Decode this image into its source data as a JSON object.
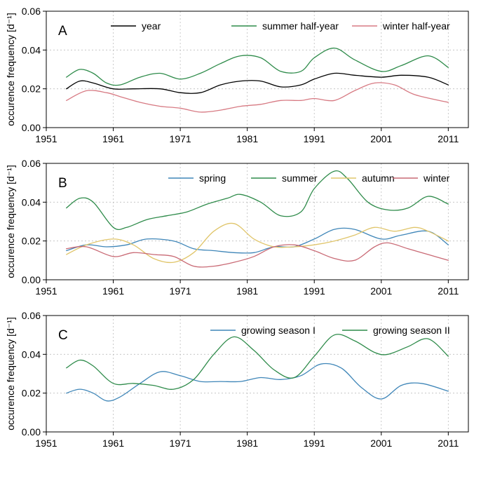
{
  "chart_data": [
    {
      "type": "line",
      "panel_label": "A",
      "ylabel": "occurence frequency [d⁻¹]",
      "xlim": [
        1951,
        2014
      ],
      "ylim": [
        0,
        0.06
      ],
      "xticks": [
        1951,
        1961,
        1971,
        1981,
        1991,
        2001,
        2011
      ],
      "yticks": [
        "0.00",
        "0.02",
        "0.04",
        "0.06"
      ],
      "grid": true,
      "legend_position": "top",
      "series": [
        {
          "name": "year",
          "color": "#000000",
          "x": [
            1954,
            1956,
            1958,
            1961,
            1964,
            1968,
            1971,
            1974,
            1977,
            1980,
            1983,
            1986,
            1989,
            1991,
            1994,
            1997,
            2001,
            2004,
            2008,
            2011
          ],
          "y": [
            0.02,
            0.024,
            0.023,
            0.02,
            0.02,
            0.02,
            0.018,
            0.018,
            0.022,
            0.024,
            0.024,
            0.021,
            0.022,
            0.025,
            0.028,
            0.027,
            0.026,
            0.027,
            0.026,
            0.022
          ]
        },
        {
          "name": "summer half-year",
          "color": "#2e8b4a",
          "x": [
            1954,
            1956,
            1958,
            1960,
            1962,
            1965,
            1968,
            1971,
            1974,
            1977,
            1980,
            1983,
            1986,
            1989,
            1991,
            1994,
            1997,
            2001,
            2004,
            2008,
            2011
          ],
          "y": [
            0.026,
            0.03,
            0.028,
            0.023,
            0.022,
            0.026,
            0.028,
            0.025,
            0.028,
            0.033,
            0.037,
            0.036,
            0.029,
            0.029,
            0.036,
            0.041,
            0.035,
            0.029,
            0.032,
            0.037,
            0.031
          ]
        },
        {
          "name": "winter half-year",
          "color": "#d77a83",
          "x": [
            1954,
            1957,
            1960,
            1962,
            1965,
            1968,
            1971,
            1974,
            1977,
            1980,
            1983,
            1986,
            1989,
            1991,
            1994,
            1997,
            2000,
            2003,
            2006,
            2011
          ],
          "y": [
            0.014,
            0.019,
            0.018,
            0.016,
            0.013,
            0.011,
            0.01,
            0.008,
            0.009,
            0.011,
            0.012,
            0.014,
            0.014,
            0.015,
            0.014,
            0.019,
            0.023,
            0.022,
            0.017,
            0.013
          ]
        }
      ]
    },
    {
      "type": "line",
      "panel_label": "B",
      "ylabel": "occurence frequency [d⁻¹]",
      "xlim": [
        1951,
        2014
      ],
      "ylim": [
        0,
        0.06
      ],
      "xticks": [
        1951,
        1961,
        1971,
        1981,
        1991,
        2001,
        2011
      ],
      "yticks": [
        "0.00",
        "0.02",
        "0.04",
        "0.06"
      ],
      "grid": true,
      "legend_position": "top",
      "series": [
        {
          "name": "spring",
          "color": "#3f86b8",
          "x": [
            1954,
            1957,
            1960,
            1963,
            1966,
            1970,
            1973,
            1976,
            1979,
            1982,
            1985,
            1988,
            1991,
            1994,
            1997,
            2001,
            2004,
            2008,
            2011
          ],
          "y": [
            0.015,
            0.018,
            0.017,
            0.018,
            0.021,
            0.02,
            0.016,
            0.015,
            0.014,
            0.014,
            0.017,
            0.017,
            0.021,
            0.026,
            0.026,
            0.021,
            0.023,
            0.025,
            0.018
          ]
        },
        {
          "name": "summer",
          "color": "#2e8b4a",
          "x": [
            1954,
            1956,
            1958,
            1961,
            1963,
            1966,
            1969,
            1972,
            1975,
            1978,
            1980,
            1983,
            1986,
            1989,
            1991,
            1994,
            1996,
            1999,
            2002,
            2005,
            2008,
            2011
          ],
          "y": [
            0.037,
            0.042,
            0.04,
            0.027,
            0.027,
            0.031,
            0.033,
            0.035,
            0.039,
            0.042,
            0.044,
            0.04,
            0.033,
            0.035,
            0.047,
            0.056,
            0.052,
            0.04,
            0.036,
            0.037,
            0.043,
            0.039
          ]
        },
        {
          "name": "autumn",
          "color": "#e0c56a",
          "x": [
            1954,
            1957,
            1961,
            1964,
            1967,
            1970,
            1973,
            1976,
            1979,
            1982,
            1985,
            1988,
            1991,
            1994,
            1997,
            2000,
            2003,
            2006,
            2008,
            2011
          ],
          "y": [
            0.013,
            0.018,
            0.021,
            0.018,
            0.011,
            0.009,
            0.014,
            0.025,
            0.029,
            0.021,
            0.017,
            0.017,
            0.018,
            0.02,
            0.023,
            0.027,
            0.025,
            0.027,
            0.025,
            0.02
          ]
        },
        {
          "name": "winter",
          "color": "#c96a75",
          "x": [
            1954,
            1957,
            1961,
            1964,
            1967,
            1970,
            1973,
            1976,
            1979,
            1982,
            1985,
            1988,
            1991,
            1994,
            1997,
            2000,
            2002,
            2005,
            2008,
            2011
          ],
          "y": [
            0.016,
            0.017,
            0.012,
            0.014,
            0.013,
            0.012,
            0.007,
            0.007,
            0.009,
            0.012,
            0.017,
            0.018,
            0.015,
            0.011,
            0.01,
            0.017,
            0.019,
            0.016,
            0.013,
            0.01
          ]
        }
      ]
    },
    {
      "type": "line",
      "panel_label": "C",
      "ylabel": "occurence frequency [d⁻¹]",
      "xlim": [
        1951,
        2014
      ],
      "ylim": [
        0,
        0.06
      ],
      "xticks": [
        1951,
        1961,
        1971,
        1981,
        1991,
        2001,
        2011
      ],
      "yticks": [
        "0.00",
        "0.02",
        "0.04",
        "0.06"
      ],
      "grid": true,
      "legend_position": "top-right",
      "series": [
        {
          "name": "growing season I",
          "color": "#3f86b8",
          "x": [
            1954,
            1956,
            1958,
            1960,
            1962,
            1965,
            1968,
            1971,
            1974,
            1977,
            1980,
            1983,
            1986,
            1989,
            1992,
            1995,
            1998,
            2001,
            2004,
            2007,
            2011
          ],
          "y": [
            0.02,
            0.022,
            0.02,
            0.016,
            0.018,
            0.025,
            0.031,
            0.029,
            0.026,
            0.026,
            0.026,
            0.028,
            0.027,
            0.029,
            0.035,
            0.033,
            0.023,
            0.017,
            0.024,
            0.025,
            0.021
          ]
        },
        {
          "name": "growing season II",
          "color": "#2e8b4a",
          "x": [
            1954,
            1956,
            1958,
            1961,
            1964,
            1967,
            1970,
            1973,
            1976,
            1979,
            1982,
            1985,
            1988,
            1991,
            1994,
            1997,
            2000,
            2002,
            2005,
            2008,
            2011
          ],
          "y": [
            0.033,
            0.037,
            0.034,
            0.025,
            0.025,
            0.024,
            0.022,
            0.027,
            0.04,
            0.049,
            0.042,
            0.032,
            0.028,
            0.039,
            0.05,
            0.047,
            0.041,
            0.04,
            0.044,
            0.048,
            0.039
          ]
        }
      ]
    }
  ]
}
